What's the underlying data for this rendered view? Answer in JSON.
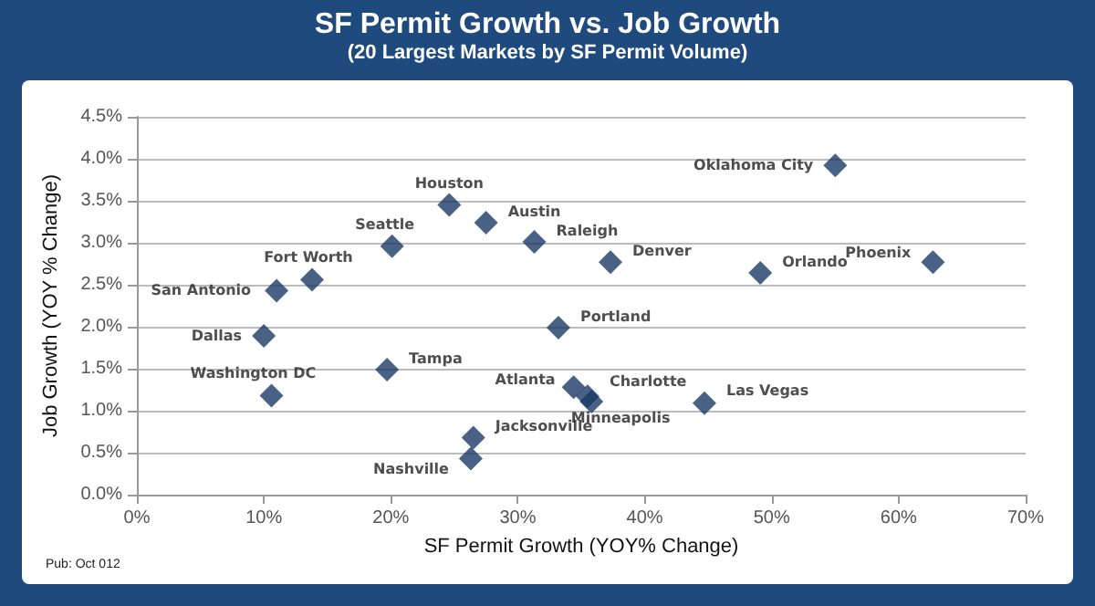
{
  "chart_data": {
    "type": "scatter",
    "title": "SF Permit Growth vs. Job Growth",
    "subtitle": "(20 Largest Markets by SF Permit Volume)",
    "xlabel": "SF Permit Growth (YOY% Change)",
    "ylabel": "Job Growth (YOY % Change)",
    "x": [
      10.6,
      10.0,
      11.0,
      13.8,
      20.1,
      19.7,
      24.6,
      27.5,
      26.5,
      26.3,
      31.3,
      37.3,
      49.1,
      62.7,
      55.0,
      33.2,
      34.4,
      35.5,
      35.8,
      44.7
    ],
    "series": [
      {
        "color": "#1b3a66",
        "values": [
          1.18,
          1.89,
          2.43,
          2.56,
          2.96,
          1.49,
          3.45,
          3.24,
          0.68,
          0.43,
          3.01,
          2.77,
          2.64,
          2.77,
          3.92,
          1.99,
          1.28,
          1.17,
          1.11,
          1.09
        ]
      }
    ],
    "annotations": [
      {
        "text": "Washington DC",
        "x": 10.6,
        "y": 1.18
      },
      {
        "text": "Dallas",
        "x": 10.0,
        "y": 1.89
      },
      {
        "text": "San Antonio",
        "x": 11.0,
        "y": 2.43
      },
      {
        "text": "Fort Worth",
        "x": 13.8,
        "y": 2.56
      },
      {
        "text": "Seattle",
        "x": 20.1,
        "y": 2.96
      },
      {
        "text": "Tampa",
        "x": 19.7,
        "y": 1.49
      },
      {
        "text": "Houston",
        "x": 24.6,
        "y": 3.45
      },
      {
        "text": "Austin",
        "x": 27.5,
        "y": 3.24
      },
      {
        "text": "Jacksonville",
        "x": 26.5,
        "y": 0.68
      },
      {
        "text": "Nashville",
        "x": 26.3,
        "y": 0.43
      },
      {
        "text": "Raleigh",
        "x": 31.3,
        "y": 3.01
      },
      {
        "text": "Denver",
        "x": 37.3,
        "y": 2.77
      },
      {
        "text": "Orlando",
        "x": 49.1,
        "y": 2.64
      },
      {
        "text": "Phoenix",
        "x": 62.7,
        "y": 2.77
      },
      {
        "text": "Oklahoma City",
        "x": 55.0,
        "y": 3.92
      },
      {
        "text": "Portland",
        "x": 33.2,
        "y": 1.99
      },
      {
        "text": "Atlanta",
        "x": 34.4,
        "y": 1.28
      },
      {
        "text": "Charlotte",
        "x": 35.5,
        "y": 1.17
      },
      {
        "text": "Minneapolis",
        "x": 35.8,
        "y": 1.11
      },
      {
        "text": "Las Vegas",
        "x": 44.7,
        "y": 1.09
      },
      "Pub: Oct 012"
    ],
    "xlim": [
      0,
      70
    ],
    "xticks": [
      {
        "value": 0,
        "label": "0%"
      },
      {
        "value": 10,
        "label": "10%"
      },
      {
        "value": 20,
        "label": "20%"
      },
      {
        "value": 30,
        "label": "30%"
      },
      {
        "value": 40,
        "label": "40%"
      },
      {
        "value": 50,
        "label": "50%"
      },
      {
        "value": 60,
        "label": "60%"
      },
      {
        "value": 70,
        "label": "70%"
      }
    ],
    "ylim": [
      0,
      4.5
    ],
    "yticks": [
      {
        "value": 0,
        "label": "0.0%"
      },
      {
        "value": 0.5,
        "label": "0.5%"
      },
      {
        "value": 1,
        "label": "1.0%"
      },
      {
        "value": 1.5,
        "label": "1.5%"
      },
      {
        "value": 2,
        "label": "2.0%"
      },
      {
        "value": 2.5,
        "label": "2.5%"
      },
      {
        "value": 3,
        "label": "3.0%"
      },
      {
        "value": 3.5,
        "label": "3.5%"
      },
      {
        "value": 4,
        "label": "4.0%"
      },
      {
        "value": 4.5,
        "label": "4.5%"
      }
    ],
    "grid": "y",
    "marker": "diamond"
  }
}
